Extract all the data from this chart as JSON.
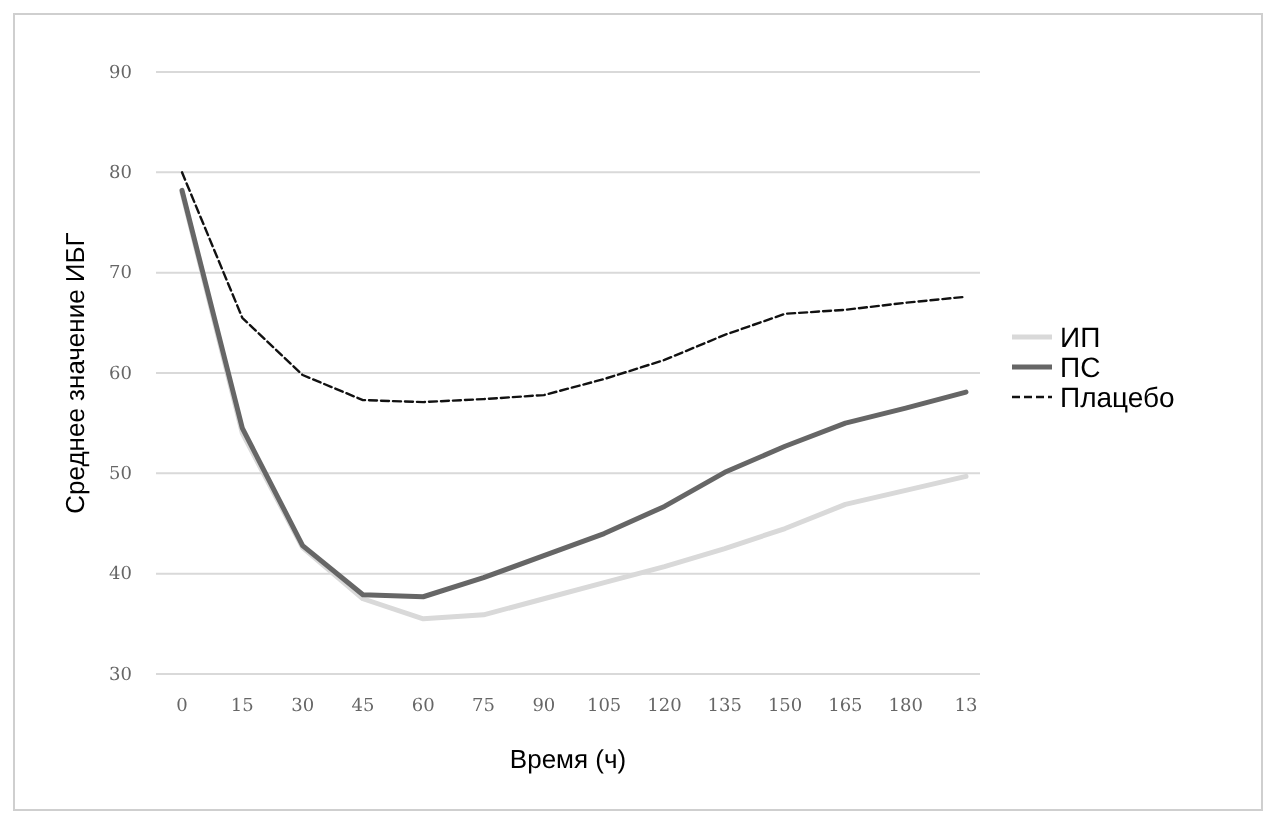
{
  "chart_data": {
    "type": "line",
    "xlabel": "Время (ч)",
    "ylabel": "Среднее значение ИБГ",
    "categories": [
      "0",
      "15",
      "30",
      "45",
      "60",
      "75",
      "90",
      "105",
      "120",
      "135",
      "150",
      "165",
      "180",
      "13"
    ],
    "series": [
      {
        "name": "ИП",
        "color": "#d9d9d9",
        "line_style": "solid",
        "values": [
          78,
          54,
          42.6,
          37.5,
          35.5,
          35.9,
          37.5,
          39.1,
          40.7,
          42.5,
          44.5,
          46.9,
          48.3,
          49.7
        ]
      },
      {
        "name": "ПС",
        "color": "#666666",
        "line_style": "solid",
        "values": [
          78.2,
          54.5,
          42.8,
          37.9,
          37.7,
          39.6,
          41.8,
          44,
          46.7,
          50.1,
          52.7,
          55,
          56.5,
          58.1
        ]
      },
      {
        "name": "Плацебо",
        "color": "#111111",
        "line_style": "dashed",
        "values": [
          80,
          65.5,
          59.8,
          57.3,
          57.1,
          57.4,
          57.8,
          59.4,
          61.3,
          63.8,
          65.9,
          66.3,
          67,
          67.6
        ]
      }
    ],
    "ylim": [
      30,
      90
    ],
    "yticks": [
      30,
      40,
      50,
      60,
      70,
      80,
      90
    ],
    "grid": "y",
    "legend": "right",
    "marker": "none"
  }
}
